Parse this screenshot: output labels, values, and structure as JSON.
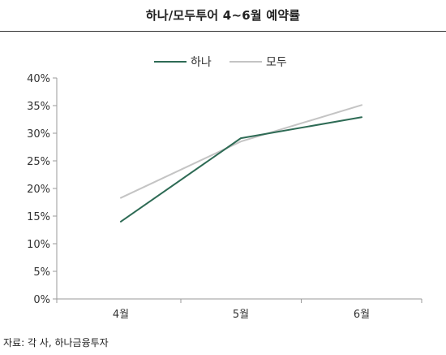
{
  "title": "하나/모두투어 4~6월 예약률",
  "source": "자료: 각 사, 하나금융투자",
  "chart_data": {
    "type": "line",
    "title": "하나/모두투어 4~6월 예약률",
    "categories": [
      "4월",
      "5월",
      "6월"
    ],
    "series": [
      {
        "name": "하나",
        "values": [
          14.0,
          29.1,
          32.9
        ],
        "color": "#2e6b55"
      },
      {
        "name": "모두",
        "values": [
          18.3,
          28.5,
          35.1
        ],
        "color": "#c4c4c4"
      }
    ],
    "ylim": [
      0,
      40
    ],
    "yticks": [
      0,
      5,
      10,
      15,
      20,
      25,
      30,
      35,
      40
    ],
    "ytick_format": "percent",
    "xlabel": "",
    "ylabel": "",
    "grid": false,
    "legend": "top-center"
  }
}
